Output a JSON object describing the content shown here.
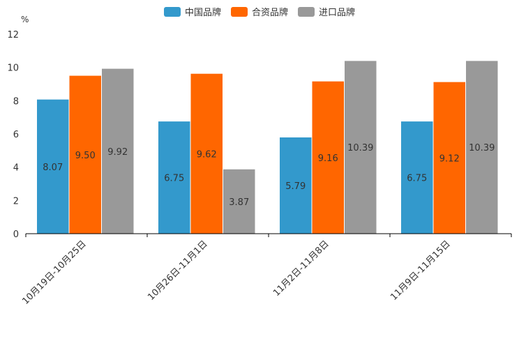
{
  "chart_data": {
    "type": "bar",
    "unit": "%",
    "categories": [
      "10月19日-10月25日",
      "10月26日-11月1日",
      "11月2日-11月8日",
      "11月9日-11月15日"
    ],
    "series": [
      {
        "name": "中国品牌",
        "color": "#3399CC",
        "values": [
          8.07,
          6.75,
          5.79,
          6.75
        ],
        "labels": [
          "8.07",
          "6.75",
          "5.79",
          "6.75"
        ]
      },
      {
        "name": "合资品牌",
        "color": "#FF6600",
        "values": [
          9.5,
          9.62,
          9.16,
          9.12
        ],
        "labels": [
          "9.50",
          "9.62",
          "9.16",
          "9.12"
        ]
      },
      {
        "name": "进口品牌",
        "color": "#999999",
        "values": [
          9.92,
          3.87,
          10.39,
          10.39
        ],
        "labels": [
          "9.92",
          "3.87",
          "10.39",
          "10.39"
        ]
      }
    ],
    "ylim": [
      0,
      12
    ],
    "yticks": [
      "0",
      "2",
      "4",
      "6",
      "8",
      "10",
      "12"
    ],
    "legend_position": "top-center"
  }
}
